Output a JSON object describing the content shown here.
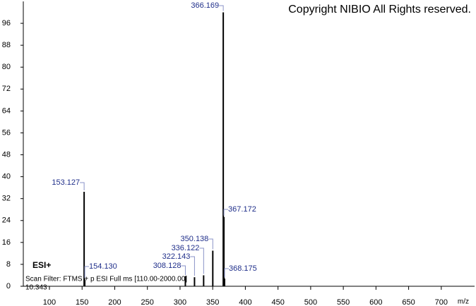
{
  "chart_data": {
    "type": "spectrum",
    "title": "Copyright NIBIO All Rights reserved.",
    "annotations": [
      "ESI+",
      "Scan Filter: FTMS + p ESI Full ms [110.00-2000.00]",
      "10.343"
    ],
    "x_label": "m/z",
    "x": [
      153.127,
      154.13,
      308.128,
      322.143,
      336.122,
      350.138,
      366.169,
      367.172,
      368.175
    ],
    "x_labels": [
      "153.127",
      "154.130",
      "308.128",
      "322.143",
      "336.122",
      "350.138",
      "366.169",
      "367.172",
      "368.175"
    ],
    "values": [
      34.5,
      2.5,
      3.6,
      3.3,
      4,
      13,
      100,
      25.3,
      2.8
    ],
    "color": "#000000",
    "label_color": "#1f2e8a",
    "xlim": [
      60,
      751
    ],
    "xticks": [
      100,
      150,
      200,
      250,
      300,
      350,
      400,
      450,
      500,
      550,
      600,
      650,
      700
    ],
    "ylim": [
      0,
      104
    ],
    "yticks": [
      0,
      8,
      16,
      24,
      32,
      40,
      48,
      56,
      64,
      72,
      80,
      88,
      96
    ]
  }
}
